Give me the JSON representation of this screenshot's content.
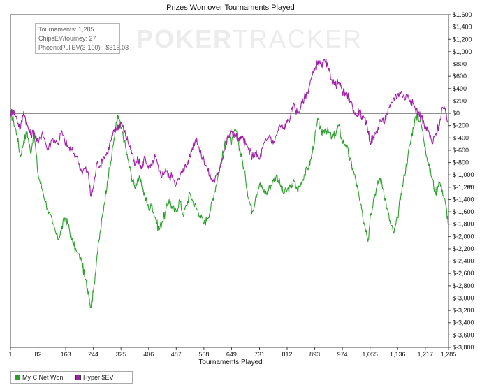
{
  "chart_data": {
    "type": "line",
    "title": "Prizes Won over Tournaments Played",
    "xlabel": "Tournaments Played",
    "ylabel": "$",
    "xlim": [
      1,
      1285
    ],
    "ylim": [
      -3800,
      1600
    ],
    "x_ticks": [
      1,
      82,
      163,
      244,
      325,
      406,
      487,
      568,
      649,
      731,
      812,
      893,
      974,
      1055,
      1136,
      1217,
      1285
    ],
    "y_ticks": [
      1600,
      1400,
      1200,
      1000,
      800,
      600,
      400,
      200,
      0,
      -200,
      -400,
      -600,
      -800,
      -1000,
      -1200,
      -1400,
      -1600,
      -1800,
      -2000,
      -2200,
      -2400,
      -2600,
      -2800,
      -3000,
      -3200,
      -3400,
      -3600,
      -3800
    ],
    "y_tick_labels": [
      "$1,600",
      "$1,400",
      "$1,200",
      "$1,000",
      "$800",
      "$600",
      "$400",
      "$200",
      "$0",
      "$-200",
      "$-400",
      "$-600",
      "$-800",
      "$-1,000",
      "$-1,200",
      "$-1,400",
      "$-1,600",
      "$-1,800",
      "$-2,000",
      "$-2,200",
      "$-2,400",
      "$-2,600",
      "$-2,800",
      "$-3,000",
      "$-3,200",
      "$-3,400",
      "$-3,600",
      "$-3,800"
    ],
    "grid": false,
    "legend": "bottom-left",
    "zero_line": true,
    "series": [
      {
        "name": "My C Net Won",
        "color": "#2ca02c",
        "points": [
          [
            1,
            0
          ],
          [
            10,
            -120
          ],
          [
            20,
            -350
          ],
          [
            30,
            -700
          ],
          [
            40,
            -450
          ],
          [
            50,
            -300
          ],
          [
            60,
            -650
          ],
          [
            70,
            -300
          ],
          [
            82,
            -1000
          ],
          [
            95,
            -1250
          ],
          [
            110,
            -1550
          ],
          [
            125,
            -1800
          ],
          [
            140,
            -2050
          ],
          [
            150,
            -1900
          ],
          [
            160,
            -1700
          ],
          [
            170,
            -1800
          ],
          [
            180,
            -2050
          ],
          [
            195,
            -2250
          ],
          [
            210,
            -2400
          ],
          [
            220,
            -2700
          ],
          [
            230,
            -2900
          ],
          [
            236,
            -3150
          ],
          [
            244,
            -2900
          ],
          [
            255,
            -2300
          ],
          [
            265,
            -1900
          ],
          [
            275,
            -1500
          ],
          [
            285,
            -1100
          ],
          [
            295,
            -800
          ],
          [
            305,
            -400
          ],
          [
            312,
            -150
          ],
          [
            318,
            -50
          ],
          [
            325,
            -250
          ],
          [
            335,
            -450
          ],
          [
            345,
            -750
          ],
          [
            355,
            -1000
          ],
          [
            365,
            -1200
          ],
          [
            375,
            -1050
          ],
          [
            385,
            -1150
          ],
          [
            395,
            -1350
          ],
          [
            406,
            -1550
          ],
          [
            416,
            -1500
          ],
          [
            426,
            -1700
          ],
          [
            436,
            -1900
          ],
          [
            446,
            -1750
          ],
          [
            456,
            -1600
          ],
          [
            466,
            -1400
          ],
          [
            476,
            -1550
          ],
          [
            487,
            -1600
          ],
          [
            497,
            -1400
          ],
          [
            507,
            -1650
          ],
          [
            517,
            -1500
          ],
          [
            527,
            -1300
          ],
          [
            537,
            -1450
          ],
          [
            547,
            -1550
          ],
          [
            557,
            -1650
          ],
          [
            568,
            -1800
          ],
          [
            578,
            -1700
          ],
          [
            588,
            -1550
          ],
          [
            598,
            -1300
          ],
          [
            608,
            -1050
          ],
          [
            618,
            -800
          ],
          [
            628,
            -550
          ],
          [
            638,
            -350
          ],
          [
            649,
            -500
          ],
          [
            660,
            -250
          ],
          [
            670,
            -500
          ],
          [
            680,
            -750
          ],
          [
            690,
            -1050
          ],
          [
            700,
            -1400
          ],
          [
            710,
            -1600
          ],
          [
            720,
            -1350
          ],
          [
            731,
            -1150
          ],
          [
            741,
            -1250
          ],
          [
            751,
            -1300
          ],
          [
            761,
            -1200
          ],
          [
            771,
            -1100
          ],
          [
            781,
            -1000
          ],
          [
            791,
            -1150
          ],
          [
            801,
            -1300
          ],
          [
            812,
            -1250
          ],
          [
            822,
            -1200
          ],
          [
            832,
            -1100
          ],
          [
            842,
            -1250
          ],
          [
            852,
            -1150
          ],
          [
            862,
            -1000
          ],
          [
            872,
            -900
          ],
          [
            882,
            -750
          ],
          [
            893,
            -400
          ],
          [
            903,
            -100
          ],
          [
            913,
            -350
          ],
          [
            923,
            -250
          ],
          [
            933,
            -300
          ],
          [
            943,
            -400
          ],
          [
            953,
            -350
          ],
          [
            963,
            -200
          ],
          [
            974,
            -450
          ],
          [
            984,
            -500
          ],
          [
            994,
            -700
          ],
          [
            1004,
            -900
          ],
          [
            1014,
            -1100
          ],
          [
            1024,
            -1400
          ],
          [
            1034,
            -1700
          ],
          [
            1044,
            -1900
          ],
          [
            1050,
            -2050
          ],
          [
            1055,
            -1700
          ],
          [
            1065,
            -1400
          ],
          [
            1075,
            -1200
          ],
          [
            1085,
            -1050
          ],
          [
            1095,
            -1250
          ],
          [
            1105,
            -1550
          ],
          [
            1115,
            -1800
          ],
          [
            1125,
            -1950
          ],
          [
            1136,
            -1700
          ],
          [
            1146,
            -1300
          ],
          [
            1156,
            -1000
          ],
          [
            1166,
            -700
          ],
          [
            1176,
            -400
          ],
          [
            1186,
            -100
          ],
          [
            1196,
            -50
          ],
          [
            1206,
            -200
          ],
          [
            1217,
            -550
          ],
          [
            1227,
            -850
          ],
          [
            1237,
            -1050
          ],
          [
            1247,
            -1300
          ],
          [
            1257,
            -1100
          ],
          [
            1267,
            -1250
          ],
          [
            1277,
            -1500
          ],
          [
            1285,
            -1800
          ]
        ]
      },
      {
        "name": "Hyper $EV",
        "color": "#a020a8",
        "points": [
          [
            1,
            0
          ],
          [
            10,
            50
          ],
          [
            20,
            -100
          ],
          [
            30,
            -250
          ],
          [
            40,
            30
          ],
          [
            50,
            -200
          ],
          [
            60,
            -350
          ],
          [
            70,
            -300
          ],
          [
            82,
            -500
          ],
          [
            95,
            -300
          ],
          [
            110,
            -600
          ],
          [
            125,
            -400
          ],
          [
            140,
            -500
          ],
          [
            150,
            -300
          ],
          [
            160,
            -450
          ],
          [
            170,
            -550
          ],
          [
            180,
            -600
          ],
          [
            195,
            -700
          ],
          [
            210,
            -950
          ],
          [
            220,
            -900
          ],
          [
            230,
            -1000
          ],
          [
            236,
            -1350
          ],
          [
            244,
            -1200
          ],
          [
            255,
            -800
          ],
          [
            265,
            -850
          ],
          [
            275,
            -700
          ],
          [
            285,
            -650
          ],
          [
            295,
            -450
          ],
          [
            305,
            -300
          ],
          [
            312,
            -250
          ],
          [
            318,
            -200
          ],
          [
            325,
            -150
          ],
          [
            335,
            -300
          ],
          [
            345,
            -450
          ],
          [
            355,
            -600
          ],
          [
            365,
            -850
          ],
          [
            375,
            -750
          ],
          [
            385,
            -900
          ],
          [
            395,
            -700
          ],
          [
            406,
            -900
          ],
          [
            416,
            -850
          ],
          [
            426,
            -700
          ],
          [
            436,
            -950
          ],
          [
            446,
            -1000
          ],
          [
            456,
            -900
          ],
          [
            466,
            -1050
          ],
          [
            476,
            -1000
          ],
          [
            487,
            -1150
          ],
          [
            497,
            -1050
          ],
          [
            507,
            -900
          ],
          [
            517,
            -850
          ],
          [
            527,
            -700
          ],
          [
            537,
            -500
          ],
          [
            547,
            -400
          ],
          [
            557,
            -650
          ],
          [
            568,
            -750
          ],
          [
            578,
            -900
          ],
          [
            588,
            -1050
          ],
          [
            598,
            -1100
          ],
          [
            608,
            -1000
          ],
          [
            618,
            -800
          ],
          [
            628,
            -600
          ],
          [
            638,
            -400
          ],
          [
            649,
            -300
          ],
          [
            660,
            -350
          ],
          [
            670,
            -450
          ],
          [
            680,
            -400
          ],
          [
            690,
            -500
          ],
          [
            700,
            -600
          ],
          [
            710,
            -700
          ],
          [
            720,
            -650
          ],
          [
            731,
            -750
          ],
          [
            741,
            -550
          ],
          [
            751,
            -450
          ],
          [
            761,
            -350
          ],
          [
            771,
            -500
          ],
          [
            781,
            -350
          ],
          [
            791,
            -200
          ],
          [
            801,
            -250
          ],
          [
            812,
            -150
          ],
          [
            822,
            -50
          ],
          [
            832,
            150
          ],
          [
            842,
            0
          ],
          [
            852,
            100
          ],
          [
            862,
            250
          ],
          [
            872,
            350
          ],
          [
            882,
            550
          ],
          [
            893,
            700
          ],
          [
            903,
            850
          ],
          [
            913,
            750
          ],
          [
            923,
            850
          ],
          [
            933,
            700
          ],
          [
            943,
            550
          ],
          [
            953,
            450
          ],
          [
            963,
            500
          ],
          [
            974,
            350
          ],
          [
            984,
            300
          ],
          [
            994,
            250
          ],
          [
            1004,
            100
          ],
          [
            1014,
            -50
          ],
          [
            1024,
            50
          ],
          [
            1034,
            -100
          ],
          [
            1044,
            -150
          ],
          [
            1050,
            -300
          ],
          [
            1055,
            -450
          ],
          [
            1065,
            -400
          ],
          [
            1075,
            -300
          ],
          [
            1085,
            -100
          ],
          [
            1095,
            -150
          ],
          [
            1105,
            0
          ],
          [
            1115,
            100
          ],
          [
            1125,
            250
          ],
          [
            1136,
            300
          ],
          [
            1146,
            350
          ],
          [
            1156,
            250
          ],
          [
            1166,
            300
          ],
          [
            1176,
            200
          ],
          [
            1186,
            100
          ],
          [
            1196,
            0
          ],
          [
            1206,
            -50
          ],
          [
            1217,
            -250
          ],
          [
            1227,
            -300
          ],
          [
            1237,
            -500
          ],
          [
            1247,
            -350
          ],
          [
            1257,
            -200
          ],
          [
            1267,
            100
          ],
          [
            1277,
            0
          ],
          [
            1285,
            -150
          ]
        ]
      }
    ]
  },
  "title": "Prizes Won over Tournaments Played",
  "stats": {
    "tournaments": "Tournaments: 1,285",
    "chips_ev": "ChipsEV/tourney: 27",
    "phoenix": "PhoenixPullEV(3-100): -$315.03"
  },
  "watermark": {
    "part1": "POKER",
    "part2": "TRACKER"
  },
  "xlabel": "Tournaments Played",
  "yunit": "$",
  "legend": {
    "item1": "My C Net Won",
    "item2": "Hyper $EV"
  },
  "colors": {
    "green": "#2ca02c",
    "purple": "#a020a8",
    "axis": "#444444"
  }
}
